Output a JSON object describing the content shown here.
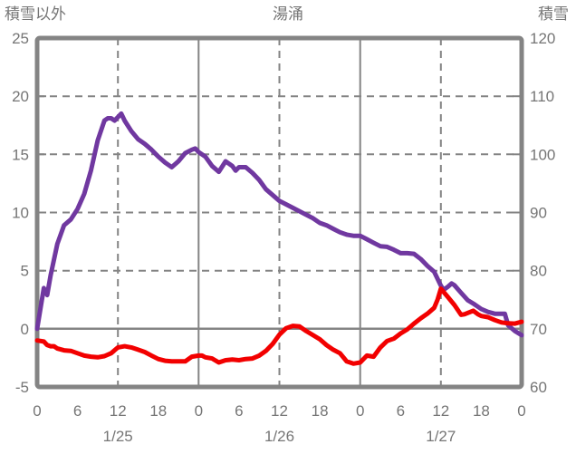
{
  "header": {
    "left_axis_title": "積雪以外",
    "chart_title": "湯涌",
    "right_axis_title": "積雪"
  },
  "colors": {
    "snow_line": "#7038A0",
    "other_line": "#F20000",
    "grid": "#848484",
    "text": "#757575",
    "background": "#ffffff"
  },
  "chart_data": {
    "type": "line",
    "title": "湯涌",
    "x_axis": {
      "range": [
        0,
        72
      ],
      "unit": "hour",
      "hours": [
        0,
        6,
        12,
        18,
        24,
        30,
        36,
        42,
        48,
        54,
        60,
        66,
        72
      ],
      "hour_labels": [
        "0",
        "6",
        "12",
        "18",
        "0",
        "6",
        "12",
        "18",
        "0",
        "6",
        "12",
        "18",
        "0"
      ],
      "day_labels": [
        "1/25",
        "1/26",
        "1/27"
      ],
      "day_label_hours": [
        12,
        36,
        60
      ]
    },
    "left_axis": {
      "title": "積雪以外",
      "range": [
        -5,
        25
      ],
      "ticks": [
        25,
        20,
        15,
        10,
        5,
        0,
        -5
      ]
    },
    "right_axis": {
      "title": "積雪",
      "range": [
        60,
        120
      ],
      "ticks": [
        120,
        110,
        100,
        90,
        80,
        70,
        60
      ]
    },
    "gridlines": {
      "h_dashed_left_values": [
        20,
        15,
        10,
        5
      ],
      "h_solid_left_values": [
        0
      ],
      "v_dashed_hours": [
        12,
        36,
        60
      ],
      "v_solid_hours": [
        24,
        48
      ]
    },
    "legend": "none",
    "series": [
      {
        "name": "積雪",
        "axis": "right",
        "color": "#7038A0",
        "points": [
          [
            0,
            70
          ],
          [
            1,
            77
          ],
          [
            1.5,
            75.8
          ],
          [
            2,
            79.2
          ],
          [
            3,
            84.6
          ],
          [
            4,
            87.8
          ],
          [
            5,
            88.8
          ],
          [
            6,
            90.6
          ],
          [
            7,
            93.2
          ],
          [
            8,
            97.2
          ],
          [
            9,
            102.4
          ],
          [
            10,
            105.8
          ],
          [
            10.5,
            106.2
          ],
          [
            11,
            106.2
          ],
          [
            11.5,
            105.8
          ],
          [
            12.5,
            107
          ],
          [
            13,
            105.8
          ],
          [
            14,
            104
          ],
          [
            15,
            102.6
          ],
          [
            16,
            101.8
          ],
          [
            17,
            100.8
          ],
          [
            18,
            99.6
          ],
          [
            19,
            98.6
          ],
          [
            20,
            97.8
          ],
          [
            21,
            98.8
          ],
          [
            22,
            100.2
          ],
          [
            23,
            100.8
          ],
          [
            23.5,
            101
          ],
          [
            24,
            100.4
          ],
          [
            25,
            99.6
          ],
          [
            26,
            98
          ],
          [
            27,
            97
          ],
          [
            28,
            98.8
          ],
          [
            29,
            98
          ],
          [
            29.5,
            97.2
          ],
          [
            30,
            97.8
          ],
          [
            31,
            97.8
          ],
          [
            32,
            96.8
          ],
          [
            33,
            95.6
          ],
          [
            34,
            94
          ],
          [
            35,
            93
          ],
          [
            36,
            92
          ],
          [
            37,
            91.4
          ],
          [
            38,
            90.8
          ],
          [
            39,
            90.2
          ],
          [
            40,
            89.6
          ],
          [
            41,
            89
          ],
          [
            42,
            88.2
          ],
          [
            43,
            87.8
          ],
          [
            44,
            87.2
          ],
          [
            45,
            86.6
          ],
          [
            46,
            86.2
          ],
          [
            47,
            86
          ],
          [
            48,
            86
          ],
          [
            49,
            85.4
          ],
          [
            50,
            84.8
          ],
          [
            51,
            84.2
          ],
          [
            52,
            84.1
          ],
          [
            53,
            83.6
          ],
          [
            54,
            83
          ],
          [
            55,
            83
          ],
          [
            56,
            82.9
          ],
          [
            57,
            82
          ],
          [
            58,
            80.8
          ],
          [
            59,
            79.8
          ],
          [
            60,
            77.4
          ],
          [
            60.4,
            76.7
          ],
          [
            61,
            77.2
          ],
          [
            61.6,
            77.8
          ],
          [
            62,
            77.5
          ],
          [
            63,
            76.2
          ],
          [
            64,
            74.9
          ],
          [
            65,
            74.2
          ],
          [
            66,
            73.4
          ],
          [
            67,
            72.9
          ],
          [
            68,
            72.6
          ],
          [
            69,
            72.6
          ],
          [
            69.5,
            72.6
          ],
          [
            70,
            70.6
          ],
          [
            71,
            69.6
          ],
          [
            72,
            68.9
          ]
        ]
      },
      {
        "name": "積雪以外",
        "axis": "left",
        "color": "#F20000",
        "points": [
          [
            0,
            -1
          ],
          [
            1,
            -1.1
          ],
          [
            1.5,
            -1.4
          ],
          [
            2,
            -1.5
          ],
          [
            2.5,
            -1.5
          ],
          [
            3,
            -1.7
          ],
          [
            4,
            -1.85
          ],
          [
            5,
            -1.9
          ],
          [
            6,
            -2.1
          ],
          [
            7,
            -2.3
          ],
          [
            8,
            -2.4
          ],
          [
            9,
            -2.45
          ],
          [
            10,
            -2.35
          ],
          [
            11,
            -2.1
          ],
          [
            12,
            -1.6
          ],
          [
            13,
            -1.5
          ],
          [
            14,
            -1.6
          ],
          [
            15,
            -1.8
          ],
          [
            16,
            -2
          ],
          [
            17,
            -2.3
          ],
          [
            18,
            -2.6
          ],
          [
            19,
            -2.75
          ],
          [
            20,
            -2.8
          ],
          [
            21,
            -2.8
          ],
          [
            22,
            -2.8
          ],
          [
            23,
            -2.4
          ],
          [
            24,
            -2.3
          ],
          [
            24.5,
            -2.3
          ],
          [
            25,
            -2.45
          ],
          [
            26,
            -2.55
          ],
          [
            27,
            -2.9
          ],
          [
            28,
            -2.7
          ],
          [
            29,
            -2.65
          ],
          [
            30,
            -2.7
          ],
          [
            31,
            -2.6
          ],
          [
            32,
            -2.55
          ],
          [
            33,
            -2.3
          ],
          [
            34,
            -1.9
          ],
          [
            35,
            -1.3
          ],
          [
            36,
            -0.5
          ],
          [
            37,
            0.05
          ],
          [
            38,
            0.25
          ],
          [
            39,
            0.2
          ],
          [
            40,
            -0.2
          ],
          [
            41,
            -0.55
          ],
          [
            42,
            -0.9
          ],
          [
            43,
            -1.4
          ],
          [
            44,
            -1.8
          ],
          [
            45,
            -2.1
          ],
          [
            46,
            -2.8
          ],
          [
            47,
            -3
          ],
          [
            48,
            -2.9
          ],
          [
            49,
            -2.3
          ],
          [
            50,
            -2.4
          ],
          [
            51,
            -1.6
          ],
          [
            52,
            -1.05
          ],
          [
            53,
            -0.85
          ],
          [
            54,
            -0.4
          ],
          [
            55,
            -0.05
          ],
          [
            56,
            0.45
          ],
          [
            57,
            0.9
          ],
          [
            58,
            1.3
          ],
          [
            59,
            1.8
          ],
          [
            59.5,
            2.5
          ],
          [
            60,
            3.45
          ],
          [
            61,
            2.75
          ],
          [
            62,
            2.05
          ],
          [
            63,
            1.2
          ],
          [
            63.5,
            1.25
          ],
          [
            64.8,
            1.55
          ],
          [
            65.5,
            1.25
          ],
          [
            66,
            1.1
          ],
          [
            67,
            1
          ],
          [
            68,
            0.75
          ],
          [
            69,
            0.55
          ],
          [
            70,
            0.47
          ],
          [
            71,
            0.45
          ],
          [
            72,
            0.6
          ]
        ]
      }
    ]
  }
}
